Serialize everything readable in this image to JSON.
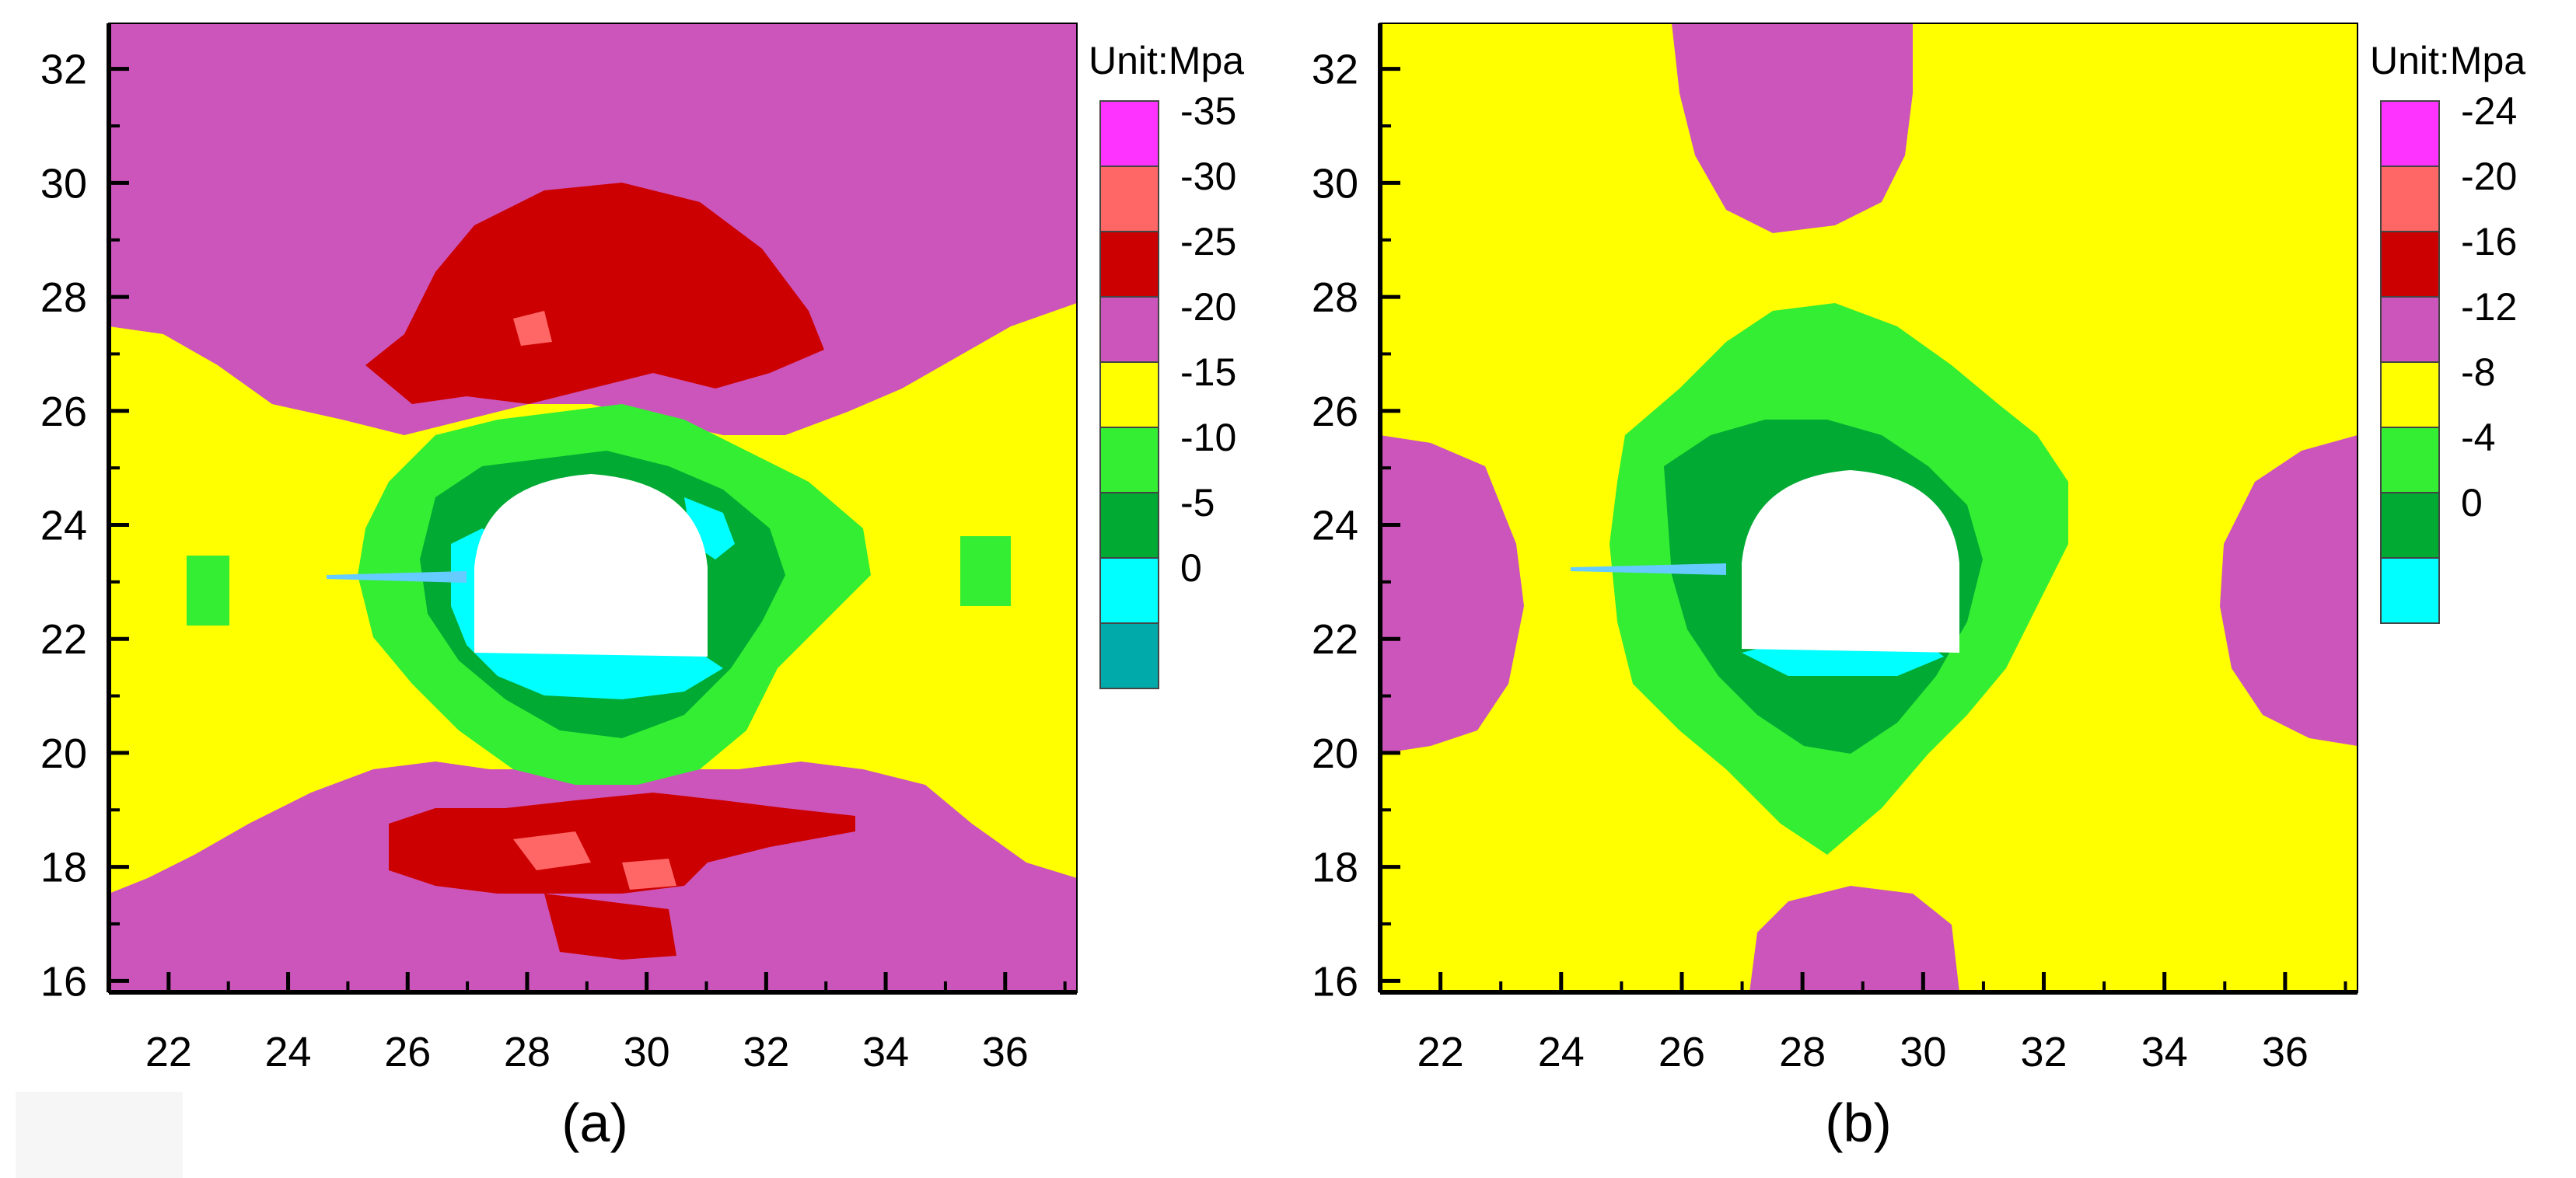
{
  "chart_data": [
    {
      "type": "heatmap",
      "panel_label": "(a)",
      "unit_label": "Unit:Mpa",
      "xlim": [
        21,
        37.2
      ],
      "ylim": [
        15.8,
        32.8
      ],
      "x_ticks": [
        "22",
        "24",
        "26",
        "28",
        "30",
        "32",
        "34",
        "36"
      ],
      "y_ticks": [
        "16",
        "18",
        "20",
        "22",
        "24",
        "26",
        "28",
        "30",
        "32"
      ],
      "legend": [
        {
          "label": "-35",
          "color": "#ff33ff"
        },
        {
          "label": "-30",
          "color": "#ff6666"
        },
        {
          "label": "-25",
          "color": "#cc0000"
        },
        {
          "label": "-20",
          "color": "#cc55bb"
        },
        {
          "label": "-15",
          "color": "#ffff00"
        },
        {
          "label": "-10",
          "color": "#33ee33"
        },
        {
          "label": "-5",
          "color": "#00aa33"
        },
        {
          "label": "0",
          "color": "#00ffff"
        },
        {
          "label": "",
          "color": "#00aaaa"
        }
      ]
    },
    {
      "type": "heatmap",
      "panel_label": "(b)",
      "unit_label": "Unit:Mpa",
      "xlim": [
        21,
        37.2
      ],
      "ylim": [
        15.8,
        32.8
      ],
      "x_ticks": [
        "22",
        "24",
        "26",
        "28",
        "30",
        "32",
        "34",
        "36"
      ],
      "y_ticks": [
        "16",
        "18",
        "20",
        "22",
        "24",
        "26",
        "28",
        "30",
        "32"
      ],
      "legend": [
        {
          "label": "-24",
          "color": "#ff33ff"
        },
        {
          "label": "-20",
          "color": "#ff6666"
        },
        {
          "label": "-16",
          "color": "#cc0000"
        },
        {
          "label": "-12",
          "color": "#cc55bb"
        },
        {
          "label": "-8",
          "color": "#ffff00"
        },
        {
          "label": "-4",
          "color": "#33ee33"
        },
        {
          "label": "0",
          "color": "#00aa33"
        },
        {
          "label": "",
          "color": "#00ffff"
        }
      ]
    }
  ]
}
